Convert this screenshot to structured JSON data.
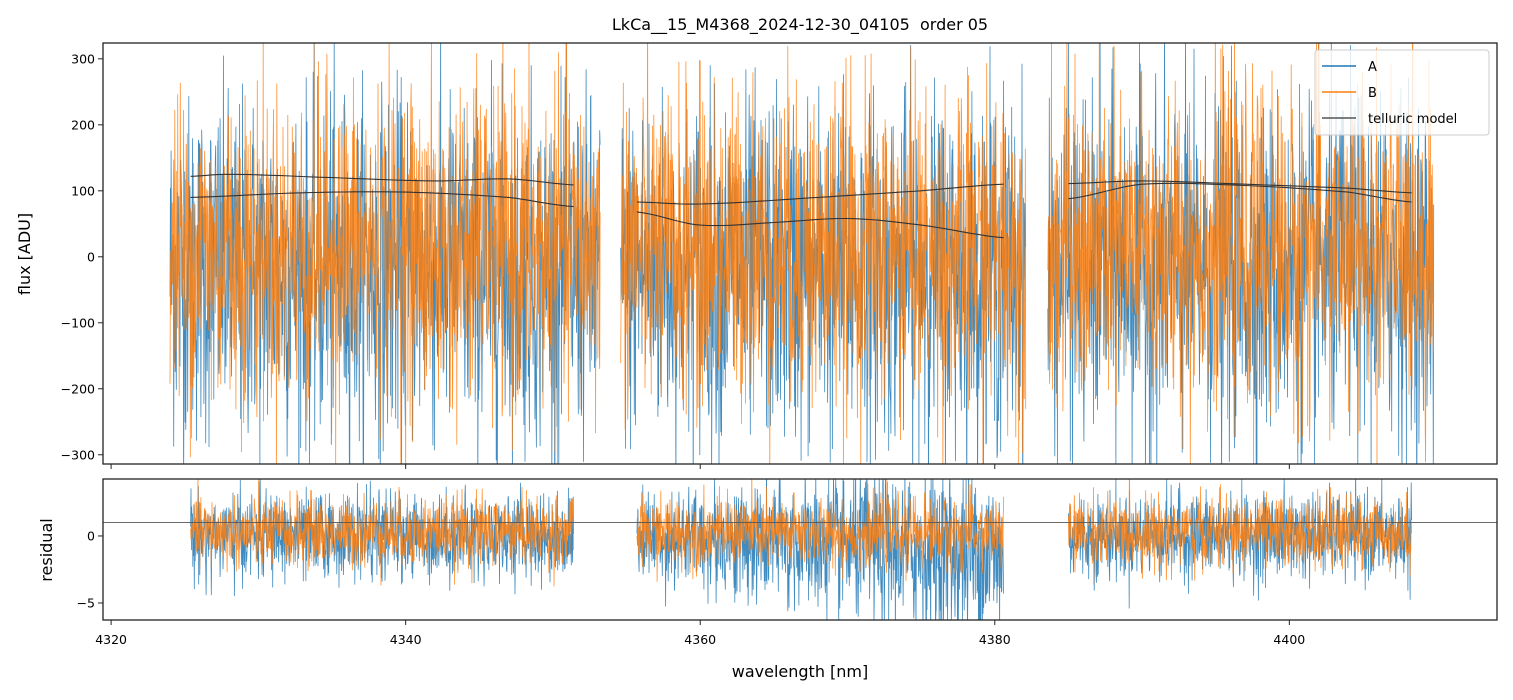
{
  "chart_data": [
    {
      "type": "line",
      "title": "LkCa__15_M4368_2024-12-30_04105  order 05",
      "xlabel": "",
      "ylabel": "flux [ADU]",
      "xlim": [
        4319.45,
        4414.1
      ],
      "ylim": [
        -314,
        324
      ],
      "yticks": [
        300,
        200,
        100,
        0,
        -100,
        -200,
        -300
      ],
      "ytick_labels": [
        "300",
        "200",
        "100",
        "0",
        "−100",
        "−200",
        "−300"
      ],
      "legend": {
        "placement": "top-right",
        "entries": [
          "A",
          "B",
          "telluric model"
        ]
      },
      "colors": {
        "A": "#1f77b4",
        "B": "#ff7f0e",
        "telluric model": "#333333"
      },
      "segments": [
        [
          4324.0,
          4353.2
        ],
        [
          4354.6,
          4382.1
        ],
        [
          4383.6,
          4409.8
        ]
      ],
      "series_noise": {
        "A": {
          "mean": -20,
          "sigma": 130
        },
        "B": {
          "mean": 10,
          "sigma": 120
        }
      },
      "telluric": [
        {
          "x": [
            4325.4,
            4328,
            4335,
            4342,
            4347,
            4351.4
          ],
          "y": [
            122,
            125,
            120,
            115,
            118,
            109
          ]
        },
        {
          "x": [
            4325.4,
            4333,
            4340,
            4347,
            4351.4
          ],
          "y": [
            90,
            97,
            98,
            90,
            76
          ]
        },
        {
          "x": [
            4355.7,
            4360,
            4368,
            4375,
            4380.6
          ],
          "y": [
            83,
            80,
            90,
            100,
            110
          ]
        },
        {
          "x": [
            4355.7,
            4360,
            4365,
            4370,
            4375,
            4380.6
          ],
          "y": [
            68,
            48,
            52,
            58,
            48,
            29
          ]
        },
        {
          "x": [
            4385,
            4390,
            4397,
            4404,
            4408.3
          ],
          "y": [
            111,
            115,
            110,
            104,
            97
          ]
        },
        {
          "x": [
            4385,
            4390,
            4397,
            4404,
            4408.3
          ],
          "y": [
            88,
            110,
            108,
            98,
            83
          ]
        }
      ]
    },
    {
      "type": "line",
      "xlabel": "wavelength [nm]",
      "ylabel": "residual",
      "xlim": [
        4319.45,
        4414.1
      ],
      "ylim": [
        -6.27,
        4.25
      ],
      "xticks": [
        4320,
        4340,
        4360,
        4380,
        4400
      ],
      "xtick_labels": [
        "4320",
        "4340",
        "4360",
        "4380",
        "4400"
      ],
      "yticks": [
        0,
        -5
      ],
      "ytick_labels": [
        "0",
        "−5"
      ],
      "reference_line": 1.0,
      "segments": [
        [
          4325.4,
          4351.4
        ],
        [
          4355.7,
          4380.6
        ],
        [
          4385.0,
          4408.3
        ]
      ],
      "series_noise": {
        "A": {
          "sigma": 1.6
        },
        "B": {
          "sigma": 1.3
        }
      }
    }
  ]
}
